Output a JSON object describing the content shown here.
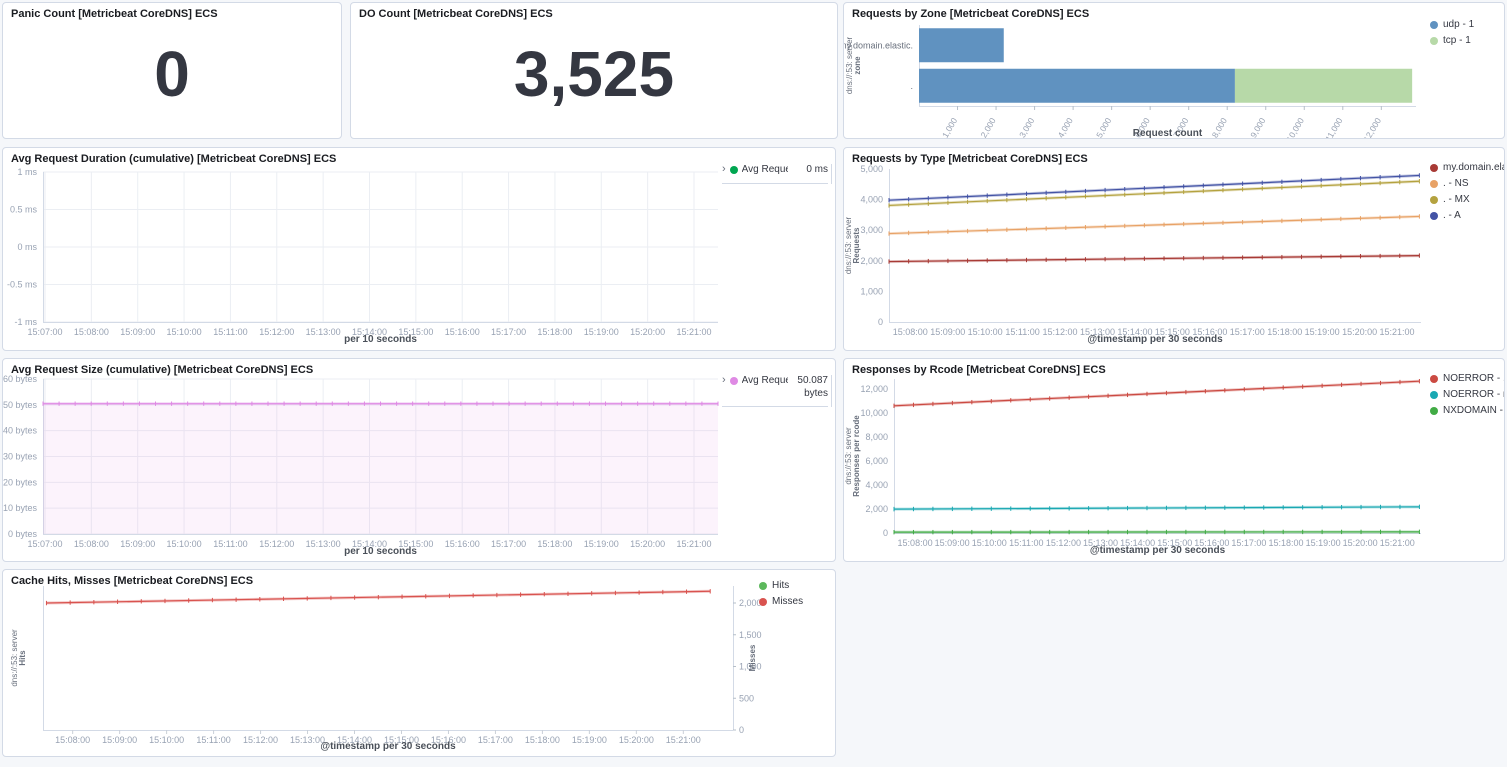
{
  "dashboard": {
    "background_color": "#f5f7fa",
    "panel_border_color": "#d3dae6"
  },
  "panels": {
    "panic_count": {
      "title": "Panic Count [Metricbeat CoreDNS] ECS",
      "value": "0"
    },
    "do_count": {
      "title": "DO Count [Metricbeat CoreDNS] ECS",
      "value": "3,525"
    }
  },
  "chart_data": {
    "requests_by_zone": {
      "type": "bar",
      "orientation": "horizontal",
      "title": "Requests by Zone [Metricbeat CoreDNS] ECS",
      "xlabel": "Request count",
      "ylabel_lines": [
        "dns://:53: server",
        "zone"
      ],
      "xlim": [
        0,
        12900
      ],
      "xticks": [
        {
          "v": 1000,
          "label": "1,000"
        },
        {
          "v": 2000,
          "label": "2,000"
        },
        {
          "v": 3000,
          "label": "3,000"
        },
        {
          "v": 4000,
          "label": "4,000"
        },
        {
          "v": 5000,
          "label": "5,000"
        },
        {
          "v": 6000,
          "label": "6,000"
        },
        {
          "v": 7000,
          "label": "7,000"
        },
        {
          "v": 8000,
          "label": "8,000"
        },
        {
          "v": 9000,
          "label": "9,000"
        },
        {
          "v": 10000,
          "label": "10,000"
        },
        {
          "v": 11000,
          "label": "11,000"
        },
        {
          "v": 12000,
          "label": "12,000"
        }
      ],
      "categories": [
        "my.domain.elastic.",
        "."
      ],
      "series": [
        {
          "name": "udp - 1",
          "color": "#6092c0",
          "values": [
            2200,
            8200
          ]
        },
        {
          "name": "tcp - 1",
          "color": "#b7d9a8",
          "values": [
            0,
            4600
          ]
        }
      ],
      "legend": {
        "style": "dots",
        "items": [
          {
            "label": "udp - 1",
            "color": "#6092c0"
          },
          {
            "label": "tcp - 1",
            "color": "#b7d9a8"
          }
        ]
      }
    },
    "avg_request_duration": {
      "type": "line",
      "title": "Avg Request Duration (cumulative) [Metricbeat CoreDNS] ECS",
      "xlabel": "per 10 seconds",
      "ylim": [
        -1,
        1
      ],
      "yticks": [
        {
          "v": 1,
          "label": "1 ms"
        },
        {
          "v": 0.5,
          "label": "0.5 ms"
        },
        {
          "v": 0,
          "label": "0 ms"
        },
        {
          "v": -0.5,
          "label": "-0.5 ms"
        },
        {
          "v": -1,
          "label": "-1 ms"
        }
      ],
      "xticks": [
        "15:07:00",
        "15:08:00",
        "15:09:00",
        "15:10:00",
        "15:11:00",
        "15:12:00",
        "15:13:00",
        "15:14:00",
        "15:15:00",
        "15:16:00",
        "15:17:00",
        "15:18:00",
        "15:19:00",
        "15:20:00",
        "15:21:00"
      ],
      "series": [],
      "legend": {
        "style": "expand",
        "items": [
          {
            "label": "Avg Request Dura...",
            "value": "0 ms",
            "color": "#00a651"
          }
        ]
      }
    },
    "requests_by_type": {
      "type": "line",
      "title": "Requests by Type [Metricbeat CoreDNS] ECS",
      "xlabel": "@timestamp per 30 seconds",
      "ylabel_lines": [
        "dns://:53: server",
        "Requests"
      ],
      "ylim": [
        0,
        5000
      ],
      "yticks": [
        {
          "v": 5000,
          "label": "5,000"
        },
        {
          "v": 4000,
          "label": "4,000"
        },
        {
          "v": 3000,
          "label": "3,000"
        },
        {
          "v": 2000,
          "label": "2,000"
        },
        {
          "v": 1000,
          "label": "1,000"
        },
        {
          "v": 0,
          "label": "0"
        }
      ],
      "xticks": [
        "15:08:00",
        "15:09:00",
        "15:10:00",
        "15:11:00",
        "15:12:00",
        "15:13:00",
        "15:14:00",
        "15:15:00",
        "15:16:00",
        "15:17:00",
        "15:18:00",
        "15:19:00",
        "15:20:00",
        "15:21:00"
      ],
      "series": [
        {
          "name": "my.domain.elastic. - A",
          "color": "#a83a35",
          "values": [
            1975,
            2170
          ]
        },
        {
          "name": ". - NS",
          "color": "#e8a266",
          "values": [
            2890,
            3450
          ]
        },
        {
          "name": ". - MX",
          "color": "#b4a23f",
          "values": [
            3810,
            4600
          ]
        },
        {
          "name": ". - A",
          "color": "#4353a5",
          "values": [
            3980,
            4790
          ]
        }
      ],
      "legend": {
        "style": "dots",
        "items": [
          {
            "label": "my.domain.elastic. - A",
            "color": "#a83a35"
          },
          {
            "label": ". - NS",
            "color": "#e8a266"
          },
          {
            "label": ". - MX",
            "color": "#b4a23f"
          },
          {
            "label": ". - A",
            "color": "#4353a5"
          }
        ]
      }
    },
    "avg_request_size": {
      "type": "area",
      "title": "Avg Request Size (cumulative) [Metricbeat CoreDNS] ECS",
      "xlabel": "per 10 seconds",
      "ylim": [
        0,
        60
      ],
      "yticks": [
        {
          "v": 60,
          "label": "60 bytes"
        },
        {
          "v": 50,
          "label": "50 bytes"
        },
        {
          "v": 40,
          "label": "40 bytes"
        },
        {
          "v": 30,
          "label": "30 bytes"
        },
        {
          "v": 20,
          "label": "20 bytes"
        },
        {
          "v": 10,
          "label": "10 bytes"
        },
        {
          "v": 0,
          "label": "0 bytes"
        }
      ],
      "xticks": [
        "15:07:00",
        "15:08:00",
        "15:09:00",
        "15:10:00",
        "15:11:00",
        "15:12:00",
        "15:13:00",
        "15:14:00",
        "15:15:00",
        "15:16:00",
        "15:17:00",
        "15:18:00",
        "15:19:00",
        "15:20:00",
        "15:21:00"
      ],
      "series": [
        {
          "name": "Avg Request ...",
          "color": "#df8ae4",
          "fill": "rgba(223,138,228,0.10)",
          "values": [
            50.45,
            50.45
          ]
        }
      ],
      "legend": {
        "style": "expand",
        "items": [
          {
            "label": "Avg Request ...",
            "value": "50.087 bytes",
            "color": "#df8ae4"
          }
        ]
      }
    },
    "responses_by_rcode": {
      "type": "line",
      "title": "Responses by Rcode [Metricbeat CoreDNS] ECS",
      "xlabel": "@timestamp per 30 seconds",
      "ylabel_lines": [
        "dns://:53: server",
        "Responses per rcode"
      ],
      "ylim": [
        0,
        12833
      ],
      "yticks": [
        {
          "v": 12000,
          "label": "12,000"
        },
        {
          "v": 10000,
          "label": "10,000"
        },
        {
          "v": 8000,
          "label": "8,000"
        },
        {
          "v": 6000,
          "label": "6,000"
        },
        {
          "v": 4000,
          "label": "4,000"
        },
        {
          "v": 2000,
          "label": "2,000"
        },
        {
          "v": 0,
          "label": "0"
        }
      ],
      "xticks": [
        "15:08:00",
        "15:09:00",
        "15:10:00",
        "15:11:00",
        "15:12:00",
        "15:13:00",
        "15:14:00",
        "15:15:00",
        "15:16:00",
        "15:17:00",
        "15:18:00",
        "15:19:00",
        "15:20:00",
        "15:21:00"
      ],
      "series": [
        {
          "name": "NOERROR - .",
          "color": "#cb4a42",
          "values": [
            10600,
            12650
          ]
        },
        {
          "name": "NOERROR - my.dom...",
          "color": "#1aa8b2",
          "values": [
            1990,
            2180
          ]
        },
        {
          "name": "NXDOMAIN - .",
          "color": "#41ab45",
          "values": [
            70,
            95
          ]
        }
      ],
      "legend": {
        "style": "dots",
        "items": [
          {
            "label": "NOERROR - .",
            "color": "#cb4a42"
          },
          {
            "label": "NOERROR - my.dom...",
            "color": "#1aa8b2"
          },
          {
            "label": "NXDOMAIN - .",
            "color": "#41ab45"
          }
        ]
      }
    },
    "cache_hits_misses": {
      "type": "line",
      "title": "Cache Hits, Misses [Metricbeat CoreDNS] ECS",
      "xlabel": "@timestamp per 30 seconds",
      "ylabel_lines": [
        "dns://:53: server",
        "Hits"
      ],
      "right_ylabel": "Misses",
      "ylim": [
        0,
        2268
      ],
      "right_yticks": [
        {
          "v": 2000,
          "label": "2,000"
        },
        {
          "v": 1500,
          "label": "1,500"
        },
        {
          "v": 1000,
          "label": "1,000"
        },
        {
          "v": 500,
          "label": "500"
        },
        {
          "v": 0,
          "label": "0"
        }
      ],
      "xticks": [
        "15:08:00",
        "15:09:00",
        "15:10:00",
        "15:11:00",
        "15:12:00",
        "15:13:00",
        "15:14:00",
        "15:15:00",
        "15:16:00",
        "15:17:00",
        "15:18:00",
        "15:19:00",
        "15:20:00",
        "15:21:00"
      ],
      "series": [
        {
          "name": "Misses",
          "color": "#d9534f",
          "values": [
            2000,
            2185
          ]
        }
      ],
      "legend": {
        "style": "dots",
        "items": [
          {
            "label": "Hits",
            "color": "#5cb85c"
          },
          {
            "label": "Misses",
            "color": "#d9534f"
          }
        ]
      }
    }
  }
}
